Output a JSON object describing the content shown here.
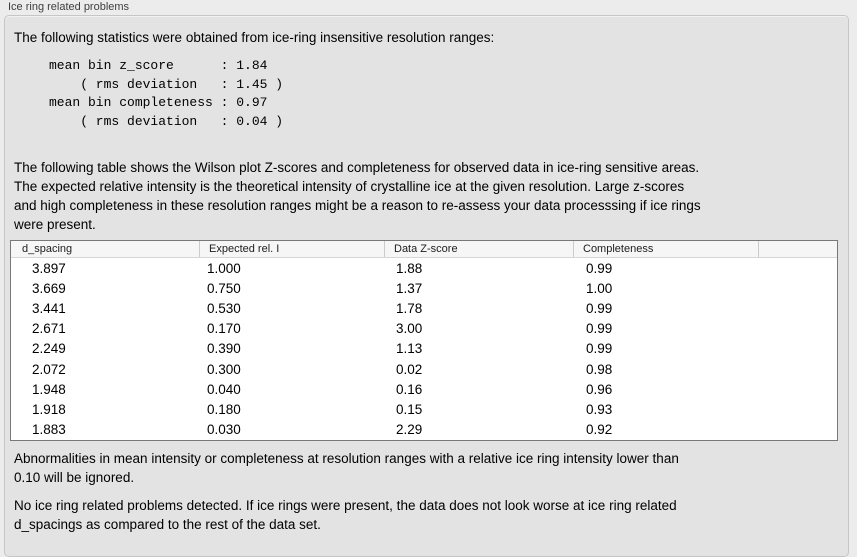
{
  "panel": {
    "title": "Ice ring related problems"
  },
  "intro_text": "The following statistics were obtained from ice-ring insensitive resolution ranges:",
  "stats_block": "mean bin z_score      : 1.84\n    ( rms deviation   : 1.45 )\nmean bin completeness : 0.97\n    ( rms deviation   : 0.04 )",
  "stats": {
    "mean_bin_z_score": "1.84",
    "z_score_rms_deviation": "1.45",
    "mean_bin_completeness": "0.97",
    "completeness_rms_deviation": "0.04"
  },
  "table_note": "The following table shows the Wilson plot Z-scores and completeness for observed data in ice-ring sensitive areas.\nThe expected relative intensity is the theoretical intensity of crystalline ice at the given resolution. Large z-scores\nand high completeness in these resolution ranges might be a reason to re-assess your data processsing if ice rings\nwere present.",
  "table": {
    "columns": [
      "d_spacing",
      "Expected rel. I",
      "Data Z-score",
      "Completeness",
      ""
    ],
    "rows": [
      [
        "3.897",
        "1.000",
        "1.88",
        "0.99"
      ],
      [
        "3.669",
        "0.750",
        "1.37",
        "1.00"
      ],
      [
        "3.441",
        "0.530",
        "1.78",
        "0.99"
      ],
      [
        "2.671",
        "0.170",
        "3.00",
        "0.99"
      ],
      [
        "2.249",
        "0.390",
        "1.13",
        "0.99"
      ],
      [
        "2.072",
        "0.300",
        "0.02",
        "0.98"
      ],
      [
        "1.948",
        "0.040",
        "0.16",
        "0.96"
      ],
      [
        "1.918",
        "0.180",
        "0.15",
        "0.93"
      ],
      [
        "1.883",
        "0.030",
        "2.29",
        "0.92"
      ]
    ]
  },
  "footer_note": "Abnormalities in mean intensity or completeness at resolution ranges with a relative ice ring intensity lower than\n0.10 will be ignored.",
  "conclusion": "No ice ring related problems detected. If ice rings were present, the data does not look worse at ice ring related\nd_spacings as compared to the rest of the data set.",
  "colors": {
    "outer_background": "#ececec",
    "groupbox_background": "#e3e3e3",
    "groupbox_border": "#c6c6c6",
    "table_border": "#787878",
    "table_header_background": "#f6f6f6",
    "table_body_background": "#ffffff",
    "text": "#000000"
  }
}
